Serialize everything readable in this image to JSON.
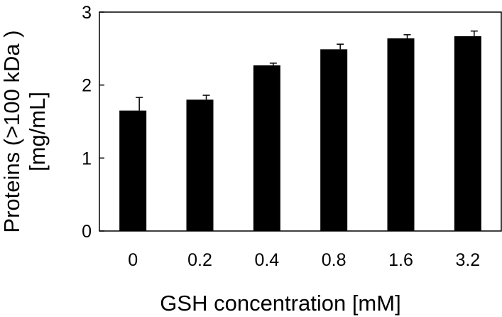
{
  "chart_data": {
    "type": "bar",
    "categories": [
      "0",
      "0.2",
      "0.4",
      "0.8",
      "1.6",
      "3.2"
    ],
    "values": [
      1.65,
      1.8,
      2.27,
      2.49,
      2.64,
      2.67
    ],
    "error": [
      0.18,
      0.06,
      0.03,
      0.07,
      0.05,
      0.07
    ],
    "xlabel": "GSH concentration [mM]",
    "ylabel_line1": "Proteins (>100 kDa )",
    "ylabel_line2": "[mg/mL]",
    "ylim": [
      0,
      3
    ],
    "yticks": [
      "0",
      "1",
      "2",
      "3"
    ],
    "bar_color": "#000000",
    "grid": false
  }
}
